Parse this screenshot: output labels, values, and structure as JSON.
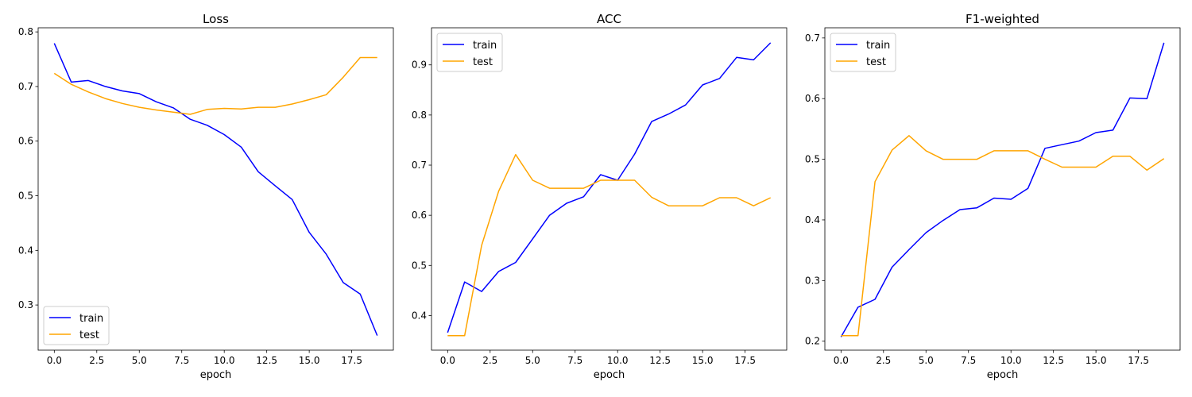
{
  "figure": {
    "background": "#ffffff"
  },
  "chart_data": [
    {
      "type": "line",
      "title": "Loss",
      "xlabel": "epoch",
      "ylabel": "",
      "xlim": [
        -0.95,
        19.95
      ],
      "ylim": [
        0.2173,
        0.8075
      ],
      "xticks": [
        0.0,
        2.5,
        5.0,
        7.5,
        10.0,
        12.5,
        15.0,
        17.5
      ],
      "xtick_labels": [
        "0.0",
        "2.5",
        "5.0",
        "7.5",
        "10.0",
        "12.5",
        "15.0",
        "17.5"
      ],
      "yticks": [
        0.3,
        0.4,
        0.5,
        0.6,
        0.7,
        0.8
      ],
      "ytick_labels": [
        "0.3",
        "0.4",
        "0.5",
        "0.6",
        "0.7",
        "0.8"
      ],
      "legend_position": "lower-left",
      "x": [
        0,
        1,
        2,
        3,
        4,
        5,
        6,
        7,
        8,
        9,
        10,
        11,
        12,
        13,
        14,
        15,
        16,
        17,
        18,
        19
      ],
      "series": [
        {
          "name": "train",
          "color": "#0000ff",
          "values": [
            0.779,
            0.708,
            0.711,
            0.7,
            0.692,
            0.687,
            0.672,
            0.661,
            0.64,
            0.629,
            0.612,
            0.589,
            0.544,
            0.518,
            0.493,
            0.433,
            0.393,
            0.341,
            0.32,
            0.244
          ]
        },
        {
          "name": "test",
          "color": "#ffa500",
          "values": [
            0.724,
            0.704,
            0.69,
            0.678,
            0.669,
            0.662,
            0.657,
            0.653,
            0.649,
            0.658,
            0.66,
            0.659,
            0.662,
            0.662,
            0.668,
            0.676,
            0.685,
            0.717,
            0.753,
            0.753
          ]
        }
      ]
    },
    {
      "type": "line",
      "title": "ACC",
      "xlabel": "epoch",
      "ylabel": "",
      "xlim": [
        -0.95,
        19.95
      ],
      "ylim": [
        0.331,
        0.974
      ],
      "xticks": [
        0.0,
        2.5,
        5.0,
        7.5,
        10.0,
        12.5,
        15.0,
        17.5
      ],
      "xtick_labels": [
        "0.0",
        "2.5",
        "5.0",
        "7.5",
        "10.0",
        "12.5",
        "15.0",
        "17.5"
      ],
      "yticks": [
        0.4,
        0.5,
        0.6,
        0.7,
        0.8,
        0.9
      ],
      "ytick_labels": [
        "0.4",
        "0.5",
        "0.6",
        "0.7",
        "0.8",
        "0.9"
      ],
      "legend_position": "upper-left",
      "x": [
        0,
        1,
        2,
        3,
        4,
        5,
        6,
        7,
        8,
        9,
        10,
        11,
        12,
        13,
        14,
        15,
        16,
        17,
        18,
        19
      ],
      "series": [
        {
          "name": "train",
          "color": "#0000ff",
          "values": [
            0.366,
            0.467,
            0.448,
            0.488,
            0.506,
            0.553,
            0.6,
            0.624,
            0.637,
            0.681,
            0.67,
            0.722,
            0.787,
            0.802,
            0.82,
            0.86,
            0.873,
            0.915,
            0.91,
            0.944
          ]
        },
        {
          "name": "test",
          "color": "#ffa500",
          "values": [
            0.36,
            0.36,
            0.54,
            0.648,
            0.721,
            0.67,
            0.654,
            0.654,
            0.654,
            0.67,
            0.67,
            0.67,
            0.636,
            0.619,
            0.619,
            0.619,
            0.635,
            0.635,
            0.619,
            0.635
          ]
        }
      ]
    },
    {
      "type": "line",
      "title": "F1-weighted",
      "xlabel": "epoch",
      "ylabel": "",
      "xlim": [
        -0.95,
        19.95
      ],
      "ylim": [
        0.1852,
        0.7168
      ],
      "xticks": [
        0.0,
        2.5,
        5.0,
        7.5,
        10.0,
        12.5,
        15.0,
        17.5
      ],
      "xtick_labels": [
        "0.0",
        "2.5",
        "5.0",
        "7.5",
        "10.0",
        "12.5",
        "15.0",
        "17.5"
      ],
      "yticks": [
        0.2,
        0.3,
        0.4,
        0.5,
        0.6,
        0.7
      ],
      "ytick_labels": [
        "0.2",
        "0.3",
        "0.4",
        "0.5",
        "0.6",
        "0.7"
      ],
      "legend_position": "upper-left",
      "x": [
        0,
        1,
        2,
        3,
        4,
        5,
        6,
        7,
        8,
        9,
        10,
        11,
        12,
        13,
        14,
        15,
        16,
        17,
        18,
        19
      ],
      "series": [
        {
          "name": "train",
          "color": "#0000ff",
          "values": [
            0.207,
            0.256,
            0.269,
            0.322,
            0.351,
            0.379,
            0.399,
            0.417,
            0.42,
            0.436,
            0.434,
            0.452,
            0.518,
            0.524,
            0.53,
            0.544,
            0.548,
            0.601,
            0.6,
            0.692
          ]
        },
        {
          "name": "test",
          "color": "#ffa500",
          "values": [
            0.209,
            0.209,
            0.463,
            0.515,
            0.539,
            0.514,
            0.5,
            0.5,
            0.5,
            0.514,
            0.514,
            0.514,
            0.5,
            0.487,
            0.487,
            0.487,
            0.505,
            0.505,
            0.482,
            0.501
          ]
        }
      ]
    }
  ]
}
